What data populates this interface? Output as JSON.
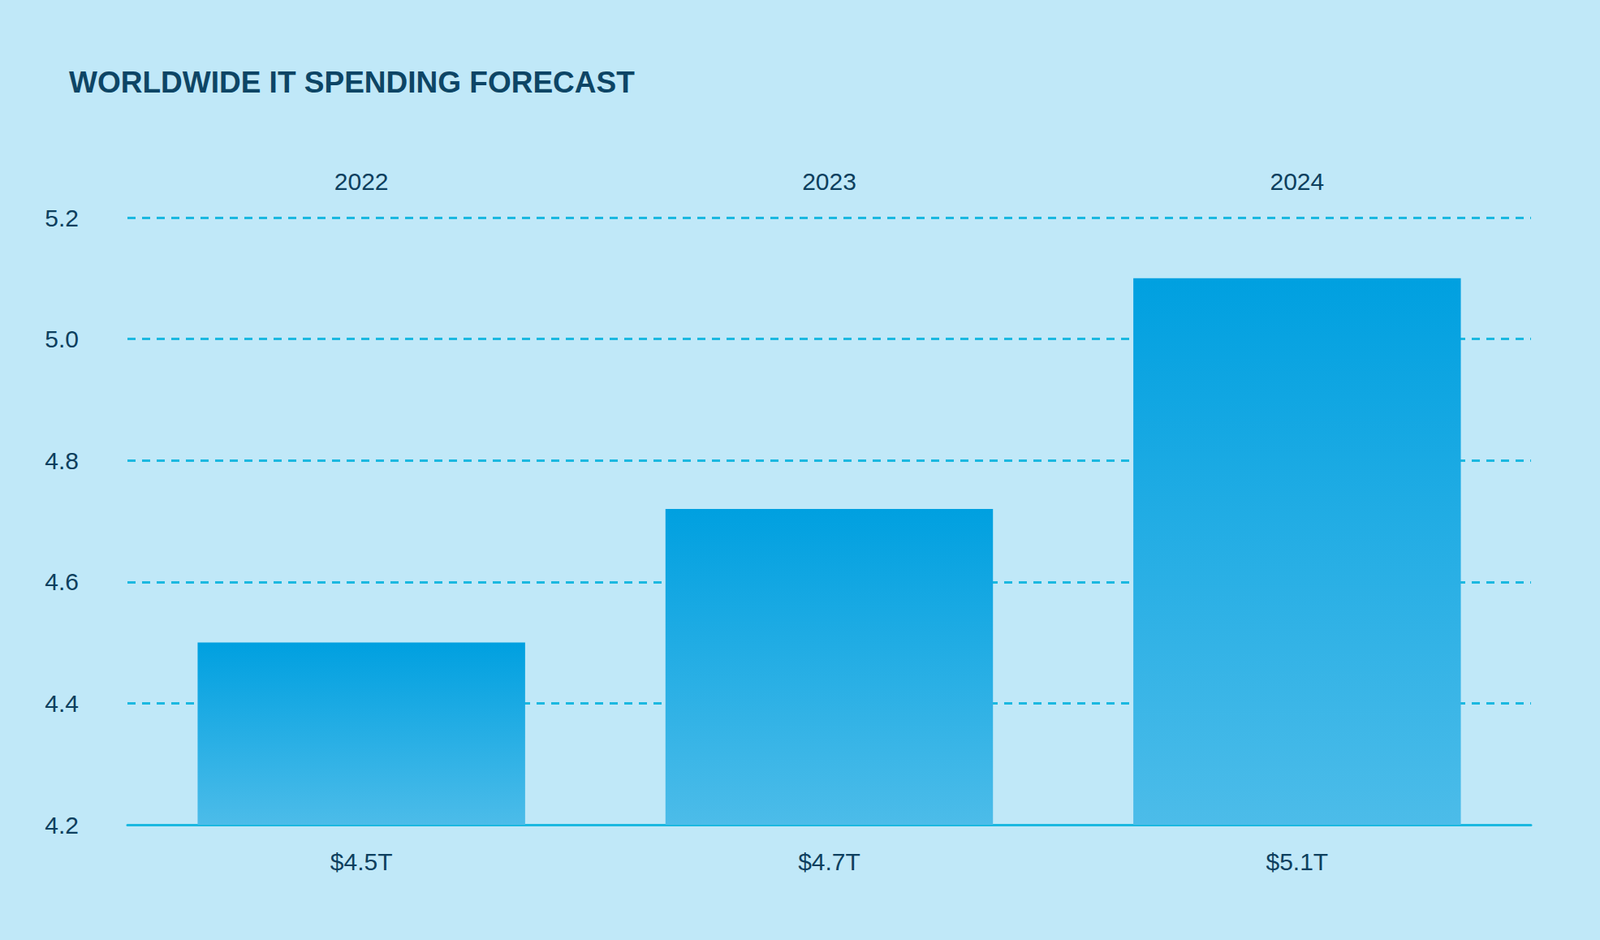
{
  "chart_data": {
    "type": "bar",
    "title": "WORLDWIDE IT SPENDING FORECAST",
    "categories": [
      "2022",
      "2023",
      "2024"
    ],
    "values": [
      4.5,
      4.72,
      5.1
    ],
    "value_labels": [
      "$4.5T",
      "$4.7T",
      "$5.1T"
    ],
    "data_labels": true,
    "color": "#00a0e0",
    "ylim": [
      4.2,
      5.2
    ],
    "yticks": [
      4.2,
      4.4,
      4.6,
      4.8,
      {
        "value": 5,
        "label": "5.0"
      },
      5.2
    ],
    "grid": true
  }
}
